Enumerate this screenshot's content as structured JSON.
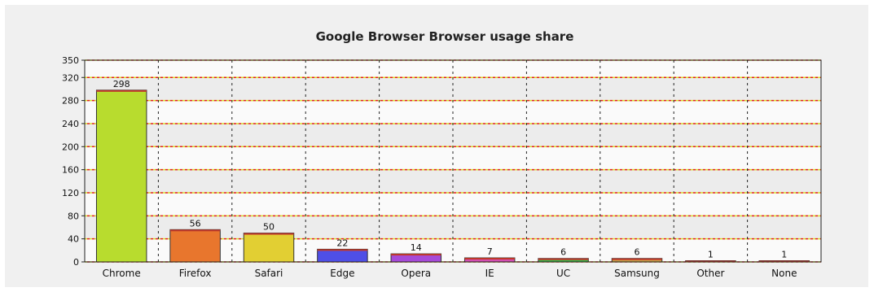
{
  "chart_data": {
    "type": "bar",
    "title": "Google Browser Browser usage share",
    "categories": [
      "Chrome",
      "Firefox",
      "Safari",
      "Edge",
      "Opera",
      "IE",
      "UC",
      "Samsung",
      "Other",
      "None"
    ],
    "values": [
      298,
      56,
      50,
      22,
      14,
      7,
      6,
      6,
      1,
      1
    ],
    "colors": [
      "#b8dc2e",
      "#e8762d",
      "#e2cf33",
      "#4f4fe6",
      "#a64ad8",
      "#d34fb4",
      "#36b54a",
      "#c8a24a",
      "#2b2b2b",
      "#e04fb4"
    ],
    "yticks": [
      0,
      40,
      80,
      120,
      160,
      200,
      240,
      280,
      320,
      350
    ],
    "ylim": [
      0,
      350
    ],
    "grid": true,
    "xlabel": "",
    "ylabel": ""
  }
}
